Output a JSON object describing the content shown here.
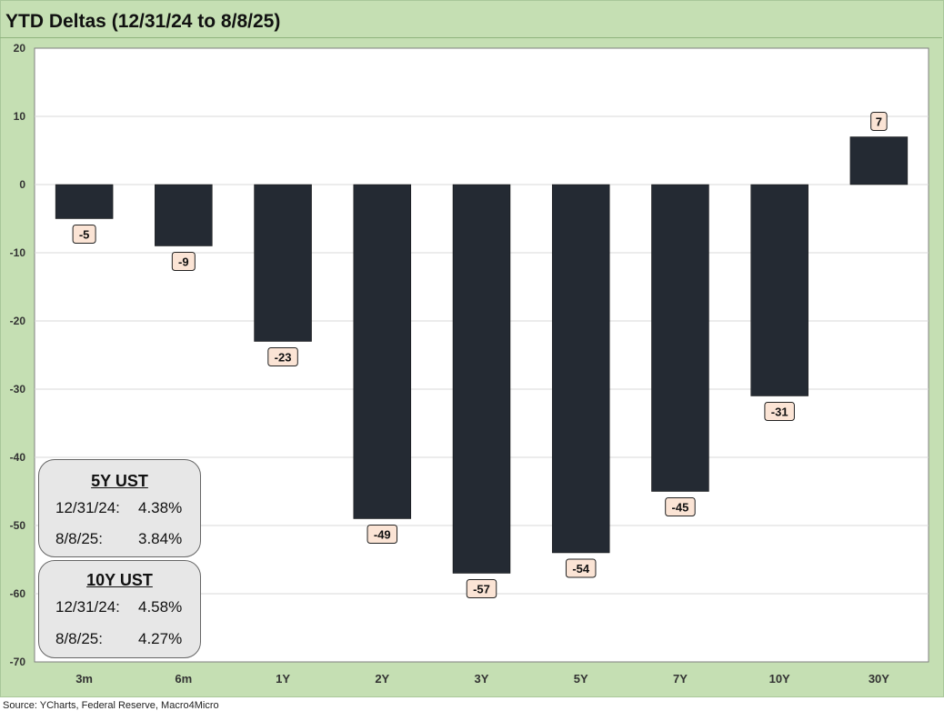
{
  "chart_data": {
    "type": "bar",
    "title": "YTD Deltas (12/31/24 to 8/8/25)",
    "categories": [
      "3m",
      "6m",
      "1Y",
      "2Y",
      "3Y",
      "5Y",
      "7Y",
      "10Y",
      "30Y"
    ],
    "values": [
      -5,
      -9,
      -23,
      -49,
      -57,
      -54,
      -45,
      -31,
      7
    ],
    "data_labels": [
      "-5",
      "-9",
      "-23",
      "-49",
      "-57",
      "-54",
      "-45",
      "-31",
      "7"
    ],
    "ylim": [
      -70,
      20
    ],
    "yticks": [
      20,
      10,
      0,
      -10,
      -20,
      -30,
      -40,
      -50,
      -60,
      -70
    ],
    "xlabel": "",
    "ylabel": "",
    "grid": true,
    "legend": "none"
  },
  "boxes": [
    {
      "title": "5Y UST",
      "rows": [
        {
          "label": "12/31/24:",
          "value": "4.38%"
        },
        {
          "label": "8/8/25:",
          "value": "3.84%"
        }
      ]
    },
    {
      "title": "10Y UST",
      "rows": [
        {
          "label": "12/31/24:",
          "value": "4.58%"
        },
        {
          "label": "8/8/25:",
          "value": "4.27%"
        }
      ]
    }
  ],
  "source": "Source: YCharts, Federal Reserve, Macro4Micro",
  "colors": {
    "frame": "#c5dfb3",
    "bar": "#242a33",
    "label_fill": "#fbe4d5",
    "gridline": "#d9d9d9"
  }
}
